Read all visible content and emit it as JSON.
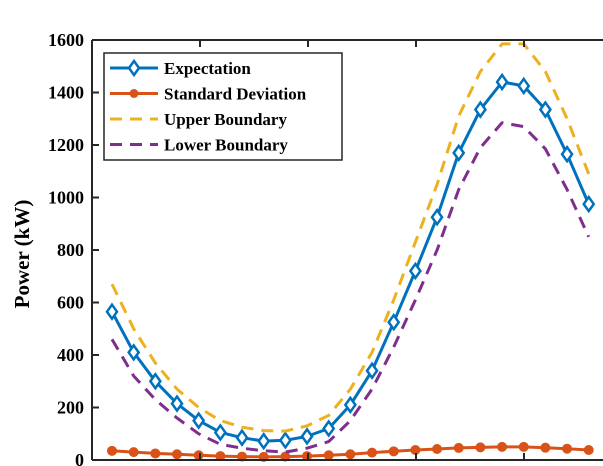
{
  "chart_data": {
    "type": "line",
    "title": "",
    "xlabel": "",
    "ylabel": "Power (kW)",
    "ylim": [
      0,
      1600
    ],
    "xlim": [
      0,
      23
    ],
    "yticks": [
      0,
      200,
      400,
      600,
      800,
      1000,
      1200,
      1400,
      1600
    ],
    "ytick_labels": [
      "0",
      "200",
      "400",
      "600",
      "800",
      "1000",
      "1200",
      "1400",
      "1600"
    ],
    "grid": false,
    "legend_position": "top-left",
    "x": [
      1,
      2,
      3,
      4,
      5,
      6,
      7,
      8,
      9,
      10,
      11,
      12,
      13,
      14,
      15,
      16,
      17,
      18,
      19,
      20,
      21,
      22,
      23
    ],
    "series": [
      {
        "name": "Expectation",
        "color": "#0072BD",
        "style": "solid",
        "marker": "diamond",
        "values": [
          565,
          410,
          300,
          215,
          150,
          105,
          85,
          72,
          75,
          90,
          120,
          210,
          340,
          525,
          720,
          925,
          1170,
          1335,
          1440,
          1425,
          1335,
          1165,
          975
        ]
      },
      {
        "name": "Standard Deviation",
        "color": "#D95319",
        "style": "solid",
        "marker": "circle",
        "values": [
          35,
          30,
          25,
          22,
          18,
          15,
          13,
          12,
          13,
          15,
          18,
          22,
          28,
          33,
          38,
          42,
          46,
          48,
          50,
          50,
          47,
          43,
          38
        ]
      },
      {
        "name": "Upper Boundary",
        "color": "#EDB120",
        "style": "dashed",
        "marker": "none",
        "values": [
          670,
          500,
          370,
          270,
          200,
          150,
          125,
          112,
          110,
          130,
          170,
          270,
          410,
          610,
          830,
          1050,
          1310,
          1480,
          1585,
          1585,
          1480,
          1300,
          1090
        ]
      },
      {
        "name": "Lower Boundary",
        "color": "#7E2F8E",
        "style": "dashed",
        "marker": "none",
        "values": [
          460,
          320,
          230,
          160,
          100,
          60,
          45,
          35,
          30,
          45,
          70,
          150,
          270,
          430,
          610,
          800,
          1030,
          1190,
          1285,
          1270,
          1185,
          1030,
          850
        ]
      }
    ]
  }
}
